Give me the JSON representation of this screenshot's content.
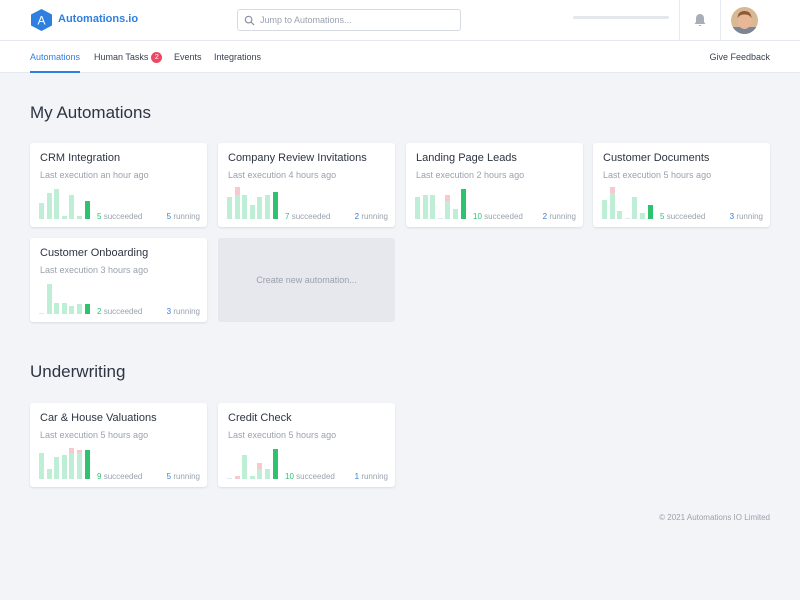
{
  "app": {
    "logo_letter": "A",
    "title": "Automations.io"
  },
  "search": {
    "placeholder": "Jump to Automations..."
  },
  "nav": {
    "tabs": [
      {
        "label": "Automations",
        "active": true
      },
      {
        "label": "Human Tasks",
        "badge": "2"
      },
      {
        "label": "Events"
      },
      {
        "label": "Integrations"
      }
    ],
    "feedback": "Give Feedback"
  },
  "sections": [
    {
      "title": "My Automations",
      "cards": [
        {
          "name": "CRM Integration",
          "last": "Last execution an hour ago",
          "succeeded": "5",
          "running": "5",
          "bars": [
            {
              "g": 0.5,
              "p": 0
            },
            {
              "g": 0.8,
              "p": 0
            },
            {
              "g": 0.95,
              "p": 0
            },
            {
              "g": 0.1,
              "p": 0
            },
            {
              "g": 0.75,
              "p": 0
            },
            {
              "g": 0.1,
              "p": 0
            },
            {
              "g": 0.55,
              "p": 0
            }
          ]
        },
        {
          "name": "Company Review Invitations",
          "last": "Last execution 4 hours ago",
          "succeeded": "7",
          "running": "2",
          "bars": [
            {
              "g": 0.7,
              "p": 0
            },
            {
              "g": 0.75,
              "p": 0.25
            },
            {
              "g": 0.75,
              "p": 0
            },
            {
              "g": 0.45,
              "p": 0
            },
            {
              "g": 0.7,
              "p": 0
            },
            {
              "g": 0.75,
              "p": 0
            },
            {
              "g": 0.85,
              "p": 0
            }
          ]
        },
        {
          "name": "Landing Page Leads",
          "last": "Last execution 2 hours ago",
          "succeeded": "10",
          "running": "2",
          "bars": [
            {
              "g": 0.7,
              "p": 0
            },
            {
              "g": 0.75,
              "p": 0
            },
            {
              "g": 0.75,
              "p": 0
            },
            {
              "g": 0,
              "p": 0
            },
            {
              "g": 0.55,
              "p": 0.2
            },
            {
              "g": 0.3,
              "p": 0
            },
            {
              "g": 0.95,
              "p": 0
            }
          ]
        },
        {
          "name": "Customer Documents",
          "last": "Last execution 5 hours ago",
          "succeeded": "5",
          "running": "3",
          "bars": [
            {
              "g": 0.6,
              "p": 0
            },
            {
              "g": 0.8,
              "p": 0.2
            },
            {
              "g": 0.25,
              "p": 0
            },
            {
              "g": 0,
              "p": 0
            },
            {
              "g": 0.7,
              "p": 0
            },
            {
              "g": 0.2,
              "p": 0
            },
            {
              "g": 0.45,
              "p": 0
            }
          ]
        },
        {
          "name": "Customer Onboarding",
          "last": "Last execution 3 hours ago",
          "succeeded": "2",
          "running": "3",
          "bars": [
            {
              "g": 0,
              "p": 0
            },
            {
              "g": 0.95,
              "p": 0
            },
            {
              "g": 0.35,
              "p": 0
            },
            {
              "g": 0.35,
              "p": 0
            },
            {
              "g": 0.25,
              "p": 0
            },
            {
              "g": 0.3,
              "p": 0
            },
            {
              "g": 0.3,
              "p": 0
            }
          ]
        }
      ],
      "new_card": "Create new automation..."
    },
    {
      "title": "Underwriting",
      "cards": [
        {
          "name": "Car & House Valuations",
          "last": "Last execution 5 hours ago",
          "succeeded": "9",
          "running": "5",
          "bars": [
            {
              "g": 0.8,
              "p": 0
            },
            {
              "g": 0.3,
              "p": 0
            },
            {
              "g": 0.7,
              "p": 0
            },
            {
              "g": 0.75,
              "p": 0
            },
            {
              "g": 0.8,
              "p": 0.15
            },
            {
              "g": 0.8,
              "p": 0.1
            },
            {
              "g": 0.9,
              "p": 0
            }
          ]
        },
        {
          "name": "Credit Check",
          "last": "Last execution 5 hours ago",
          "succeeded": "10",
          "running": "1",
          "bars": [
            {
              "g": 0,
              "p": 0
            },
            {
              "g": 0,
              "p": 0.1
            },
            {
              "g": 0.75,
              "p": 0
            },
            {
              "g": 0.1,
              "p": 0
            },
            {
              "g": 0.3,
              "p": 0.2
            },
            {
              "g": 0.3,
              "p": 0
            },
            {
              "g": 0.95,
              "p": 0
            }
          ]
        }
      ]
    }
  ],
  "labels": {
    "succeeded": "succeeded",
    "running": "running"
  },
  "footer": "© 2021 Automations IO Limited",
  "colors": {
    "accent": "#2f7fe0",
    "success": "#2ec16f",
    "success_light": "#bfeed7",
    "fail_light": "#f7c9cf",
    "badge": "#e84a63"
  }
}
